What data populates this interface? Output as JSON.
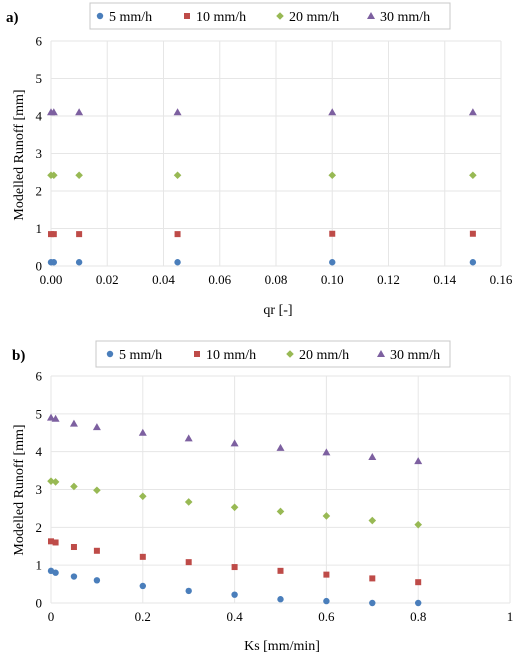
{
  "chart_data": [
    {
      "type": "scatter",
      "panel_label": "a)",
      "xlabel": "qr [-]",
      "ylabel": "Modelled Runoff [mm]",
      "xlim": [
        0,
        0.16
      ],
      "ylim": [
        0,
        6
      ],
      "xticks": [
        "0.00",
        "0.02",
        "0.04",
        "0.06",
        "0.08",
        "0.10",
        "0.12",
        "0.14",
        "0.16"
      ],
      "yticks": [
        "0",
        "1",
        "2",
        "3",
        "4",
        "5",
        "6"
      ],
      "grid": true,
      "legend_position": "top",
      "x": [
        0,
        0.001,
        0.01,
        0.045,
        0.1,
        0.15
      ],
      "series": [
        {
          "name": "5 mm/h",
          "color": "#4a7ebb",
          "marker": "circle",
          "values": [
            0.1,
            0.1,
            0.1,
            0.1,
            0.1,
            0.1
          ]
        },
        {
          "name": "10 mm/h",
          "color": "#be4b48",
          "marker": "square",
          "values": [
            0.85,
            0.85,
            0.85,
            0.85,
            0.86,
            0.86
          ]
        },
        {
          "name": "20 mm/h",
          "color": "#98b954",
          "marker": "diamond",
          "values": [
            2.42,
            2.42,
            2.42,
            2.42,
            2.42,
            2.42
          ]
        },
        {
          "name": "30 mm/h",
          "color": "#7d60a0",
          "marker": "triangle",
          "values": [
            4.1,
            4.1,
            4.1,
            4.1,
            4.1,
            4.1
          ]
        }
      ]
    },
    {
      "type": "scatter",
      "panel_label": "b)",
      "xlabel": "Ks [mm/min]",
      "ylabel": "Modelled Runoff [mm]",
      "xlim": [
        0,
        1
      ],
      "ylim": [
        0,
        6
      ],
      "xticks": [
        "0",
        "0.2",
        "0.4",
        "0.6",
        "0.8",
        "1"
      ],
      "yticks": [
        "0",
        "1",
        "2",
        "3",
        "4",
        "5",
        "6"
      ],
      "grid": true,
      "legend_position": "top",
      "x": [
        0,
        0.01,
        0.05,
        0.1,
        0.2,
        0.3,
        0.4,
        0.5,
        0.6,
        0.7,
        0.8
      ],
      "series": [
        {
          "name": "5 mm/h",
          "color": "#4a7ebb",
          "marker": "circle",
          "values": [
            0.85,
            0.8,
            0.7,
            0.6,
            0.45,
            0.32,
            0.22,
            0.1,
            0.05,
            0.0,
            0.0
          ]
        },
        {
          "name": "10 mm/h",
          "color": "#be4b48",
          "marker": "square",
          "values": [
            1.63,
            1.6,
            1.48,
            1.38,
            1.22,
            1.08,
            0.95,
            0.85,
            0.75,
            0.65,
            0.55
          ]
        },
        {
          "name": "20 mm/h",
          "color": "#98b954",
          "marker": "diamond",
          "values": [
            3.22,
            3.2,
            3.08,
            2.98,
            2.82,
            2.67,
            2.53,
            2.42,
            2.3,
            2.18,
            2.07
          ]
        },
        {
          "name": "30 mm/h",
          "color": "#7d60a0",
          "marker": "triangle",
          "values": [
            4.9,
            4.87,
            4.74,
            4.65,
            4.5,
            4.35,
            4.22,
            4.1,
            3.98,
            3.86,
            3.75
          ]
        }
      ]
    }
  ]
}
